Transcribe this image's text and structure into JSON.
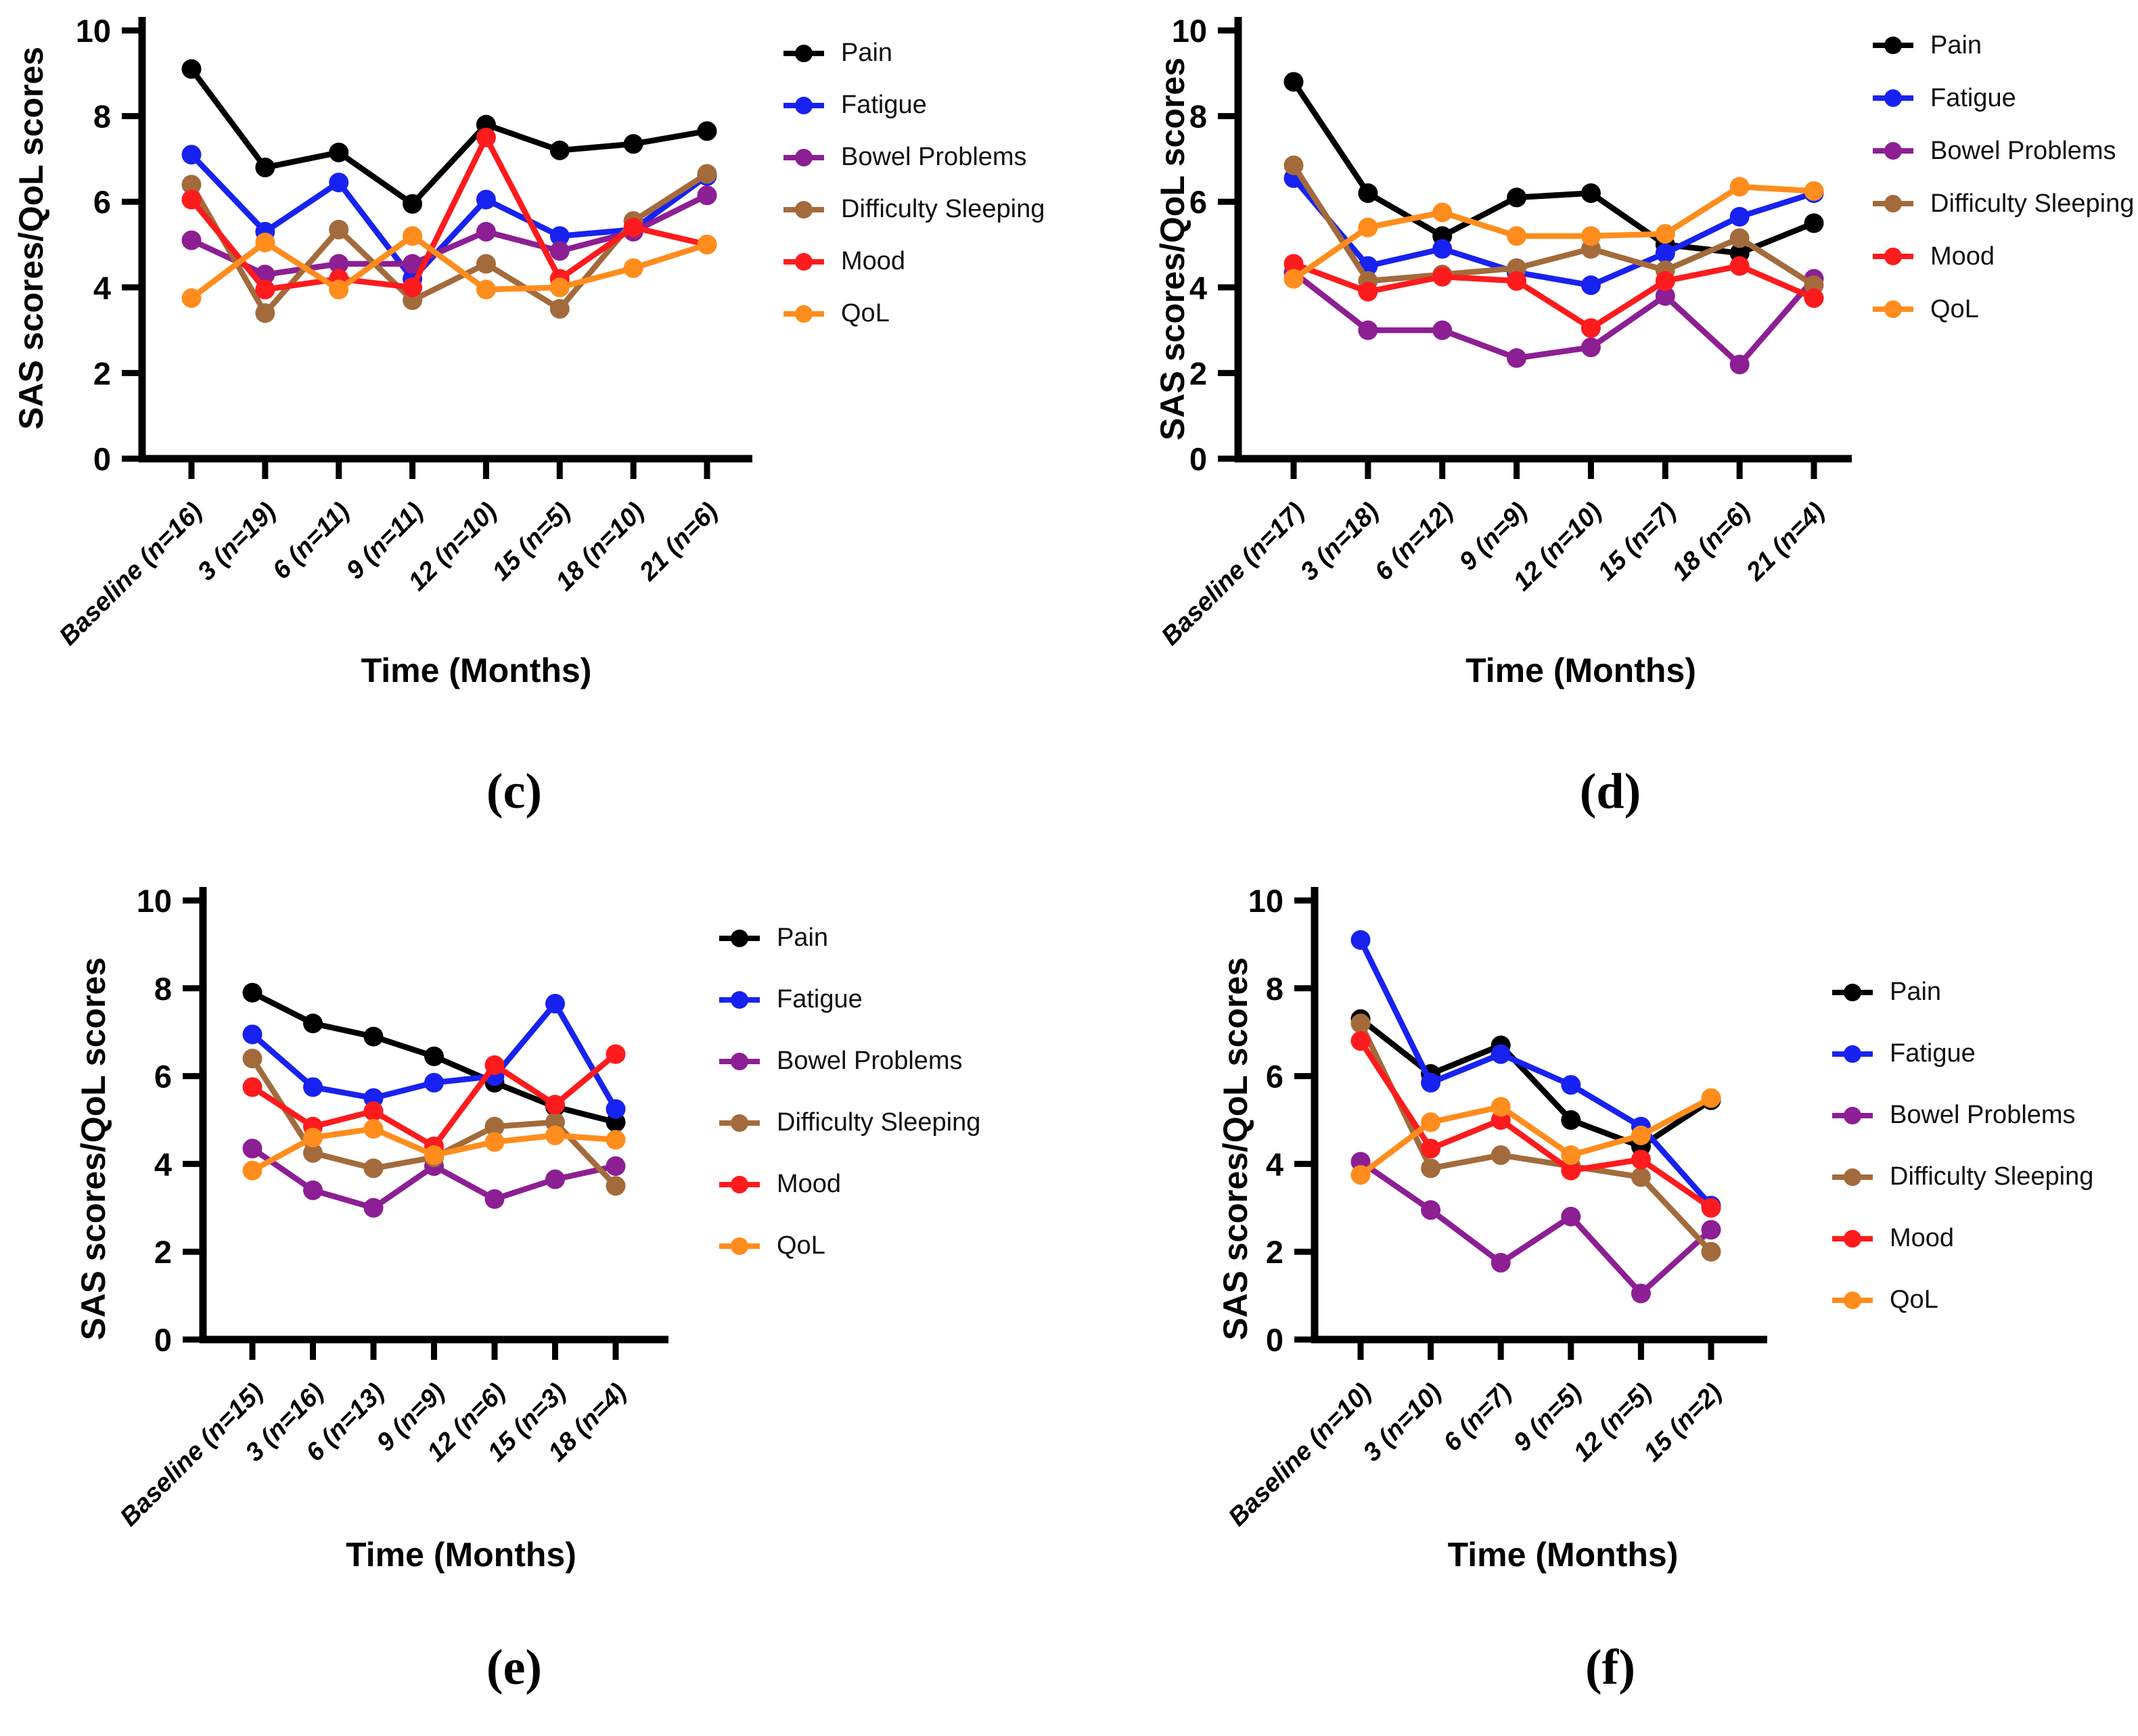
{
  "figure": {
    "y_axis_label": "SAS scores/QoL scores",
    "x_axis_label": "Time (Months)",
    "y_ticks": [
      0,
      2,
      4,
      6,
      8,
      10
    ],
    "legend": [
      {
        "name": "Pain",
        "color": "#000000"
      },
      {
        "name": "Fatigue",
        "color": "#1822f0"
      },
      {
        "name": "Bowel Problems",
        "color": "#8c1f93"
      },
      {
        "name": "Difficulty Sleeping",
        "color": "#a36b3c"
      },
      {
        "name": "Mood",
        "color": "#fe1b1d"
      },
      {
        "name": "QoL",
        "color": "#ff8d1d"
      }
    ]
  },
  "chart_data": [
    {
      "panel": "(c)",
      "type": "line",
      "title": "",
      "xlabel": "Time (Months)",
      "ylabel": "SAS scores/QoL scores",
      "ylim": [
        0,
        10
      ],
      "grid": false,
      "legend_position": "right",
      "categories": [
        "Baseline (n=16)",
        "3 (n=19)",
        "6 (n=11)",
        "9 (n=11)",
        "12 (n=10)",
        "15 (n=5)",
        "18 (n=10)",
        "21 (n=6)"
      ],
      "series": [
        {
          "name": "Pain",
          "color": "#000000",
          "values": [
            9.1,
            6.8,
            7.15,
            5.95,
            7.8,
            7.2,
            7.35,
            7.65
          ]
        },
        {
          "name": "Fatigue",
          "color": "#1822f0",
          "values": [
            7.1,
            5.3,
            6.45,
            4.2,
            6.05,
            5.2,
            5.35,
            6.6
          ]
        },
        {
          "name": "Bowel Problems",
          "color": "#8c1f93",
          "values": [
            5.1,
            4.3,
            4.55,
            4.55,
            5.3,
            4.85,
            5.3,
            6.15
          ]
        },
        {
          "name": "Difficulty Sleeping",
          "color": "#a36b3c",
          "values": [
            6.4,
            3.4,
            5.35,
            3.7,
            4.55,
            3.5,
            5.55,
            6.65
          ]
        },
        {
          "name": "Mood",
          "color": "#fe1b1d",
          "values": [
            6.05,
            3.95,
            4.2,
            4.0,
            7.5,
            4.2,
            5.4,
            5.0
          ]
        },
        {
          "name": "QoL",
          "color": "#ff8d1d",
          "values": [
            3.75,
            5.05,
            3.95,
            5.2,
            3.95,
            4.0,
            4.45,
            5.0
          ]
        }
      ]
    },
    {
      "panel": "(d)",
      "type": "line",
      "title": "",
      "xlabel": "Time (Months)",
      "ylabel": "SAS scores/QoL scores",
      "ylim": [
        0,
        10
      ],
      "grid": false,
      "legend_position": "right",
      "categories": [
        "Baseline (n=17)",
        "3 (n=18)",
        "6 (n=12)",
        "9 (n=9)",
        "12 (n=10)",
        "15 (n=7)",
        "18 (n=6)",
        "21 (n=4)"
      ],
      "series": [
        {
          "name": "Pain",
          "color": "#000000",
          "values": [
            8.8,
            6.2,
            5.2,
            6.1,
            6.2,
            5.0,
            4.8,
            5.5
          ]
        },
        {
          "name": "Fatigue",
          "color": "#1822f0",
          "values": [
            6.55,
            4.5,
            4.9,
            4.35,
            4.05,
            4.8,
            5.65,
            6.2
          ]
        },
        {
          "name": "Bowel Problems",
          "color": "#8c1f93",
          "values": [
            4.35,
            3.0,
            3.0,
            2.35,
            2.6,
            3.8,
            2.2,
            4.2
          ]
        },
        {
          "name": "Difficulty Sleeping",
          "color": "#a36b3c",
          "values": [
            6.85,
            4.15,
            4.3,
            4.45,
            4.9,
            4.4,
            5.15,
            4.05
          ]
        },
        {
          "name": "Mood",
          "color": "#fe1b1d",
          "values": [
            4.55,
            3.9,
            4.25,
            4.15,
            3.05,
            4.15,
            4.5,
            3.75
          ]
        },
        {
          "name": "QoL",
          "color": "#ff8d1d",
          "values": [
            4.2,
            5.4,
            5.75,
            5.2,
            5.2,
            5.25,
            6.35,
            6.25
          ]
        }
      ]
    },
    {
      "panel": "(e)",
      "type": "line",
      "title": "",
      "xlabel": "Time (Months)",
      "ylabel": "SAS scores/QoL scores",
      "ylim": [
        0,
        10
      ],
      "grid": false,
      "legend_position": "right",
      "categories": [
        "Baseline (n=15)",
        "3 (n=16)",
        "6 (n=13)",
        "9 (n=9)",
        "12 (n=6)",
        "15 (n=3)",
        "18 (n=4)"
      ],
      "series": [
        {
          "name": "Pain",
          "color": "#000000",
          "values": [
            7.9,
            7.2,
            6.9,
            6.45,
            5.85,
            5.3,
            4.95
          ]
        },
        {
          "name": "Fatigue",
          "color": "#1822f0",
          "values": [
            6.95,
            5.75,
            5.5,
            5.85,
            6.0,
            7.65,
            5.25
          ]
        },
        {
          "name": "Bowel Problems",
          "color": "#8c1f93",
          "values": [
            4.35,
            3.4,
            3.0,
            3.95,
            3.2,
            3.65,
            3.95
          ]
        },
        {
          "name": "Difficulty Sleeping",
          "color": "#a36b3c",
          "values": [
            6.4,
            4.25,
            3.9,
            4.15,
            4.85,
            4.95,
            3.5
          ]
        },
        {
          "name": "Mood",
          "color": "#fe1b1d",
          "values": [
            5.75,
            4.85,
            5.2,
            4.4,
            6.25,
            5.35,
            6.5
          ]
        },
        {
          "name": "QoL",
          "color": "#ff8d1d",
          "values": [
            3.85,
            4.6,
            4.8,
            4.2,
            4.5,
            4.65,
            4.55
          ]
        }
      ]
    },
    {
      "panel": "(f)",
      "type": "line",
      "title": "",
      "xlabel": "Time (Months)",
      "ylabel": "SAS scores/QoL scores",
      "ylim": [
        0,
        10
      ],
      "grid": false,
      "legend_position": "right",
      "categories": [
        "Baseline (n=10)",
        "3 (n=10)",
        "6 (n=7)",
        "9 (n=5)",
        "12 (n=5)",
        "15 (n=2)"
      ],
      "series": [
        {
          "name": "Pain",
          "color": "#000000",
          "values": [
            7.3,
            6.05,
            6.7,
            5.0,
            4.4,
            5.45
          ]
        },
        {
          "name": "Fatigue",
          "color": "#1822f0",
          "values": [
            9.1,
            5.85,
            6.5,
            5.8,
            4.85,
            3.05
          ]
        },
        {
          "name": "Bowel Problems",
          "color": "#8c1f93",
          "values": [
            4.05,
            2.95,
            1.75,
            2.8,
            1.05,
            2.5
          ]
        },
        {
          "name": "Difficulty Sleeping",
          "color": "#a36b3c",
          "values": [
            7.2,
            3.9,
            4.2,
            3.95,
            3.7,
            2.0
          ]
        },
        {
          "name": "Mood",
          "color": "#fe1b1d",
          "values": [
            6.8,
            4.35,
            5.0,
            3.85,
            4.1,
            3.0
          ]
        },
        {
          "name": "QoL",
          "color": "#ff8d1d",
          "values": [
            3.75,
            4.95,
            5.3,
            4.2,
            4.65,
            5.5
          ]
        }
      ]
    }
  ]
}
